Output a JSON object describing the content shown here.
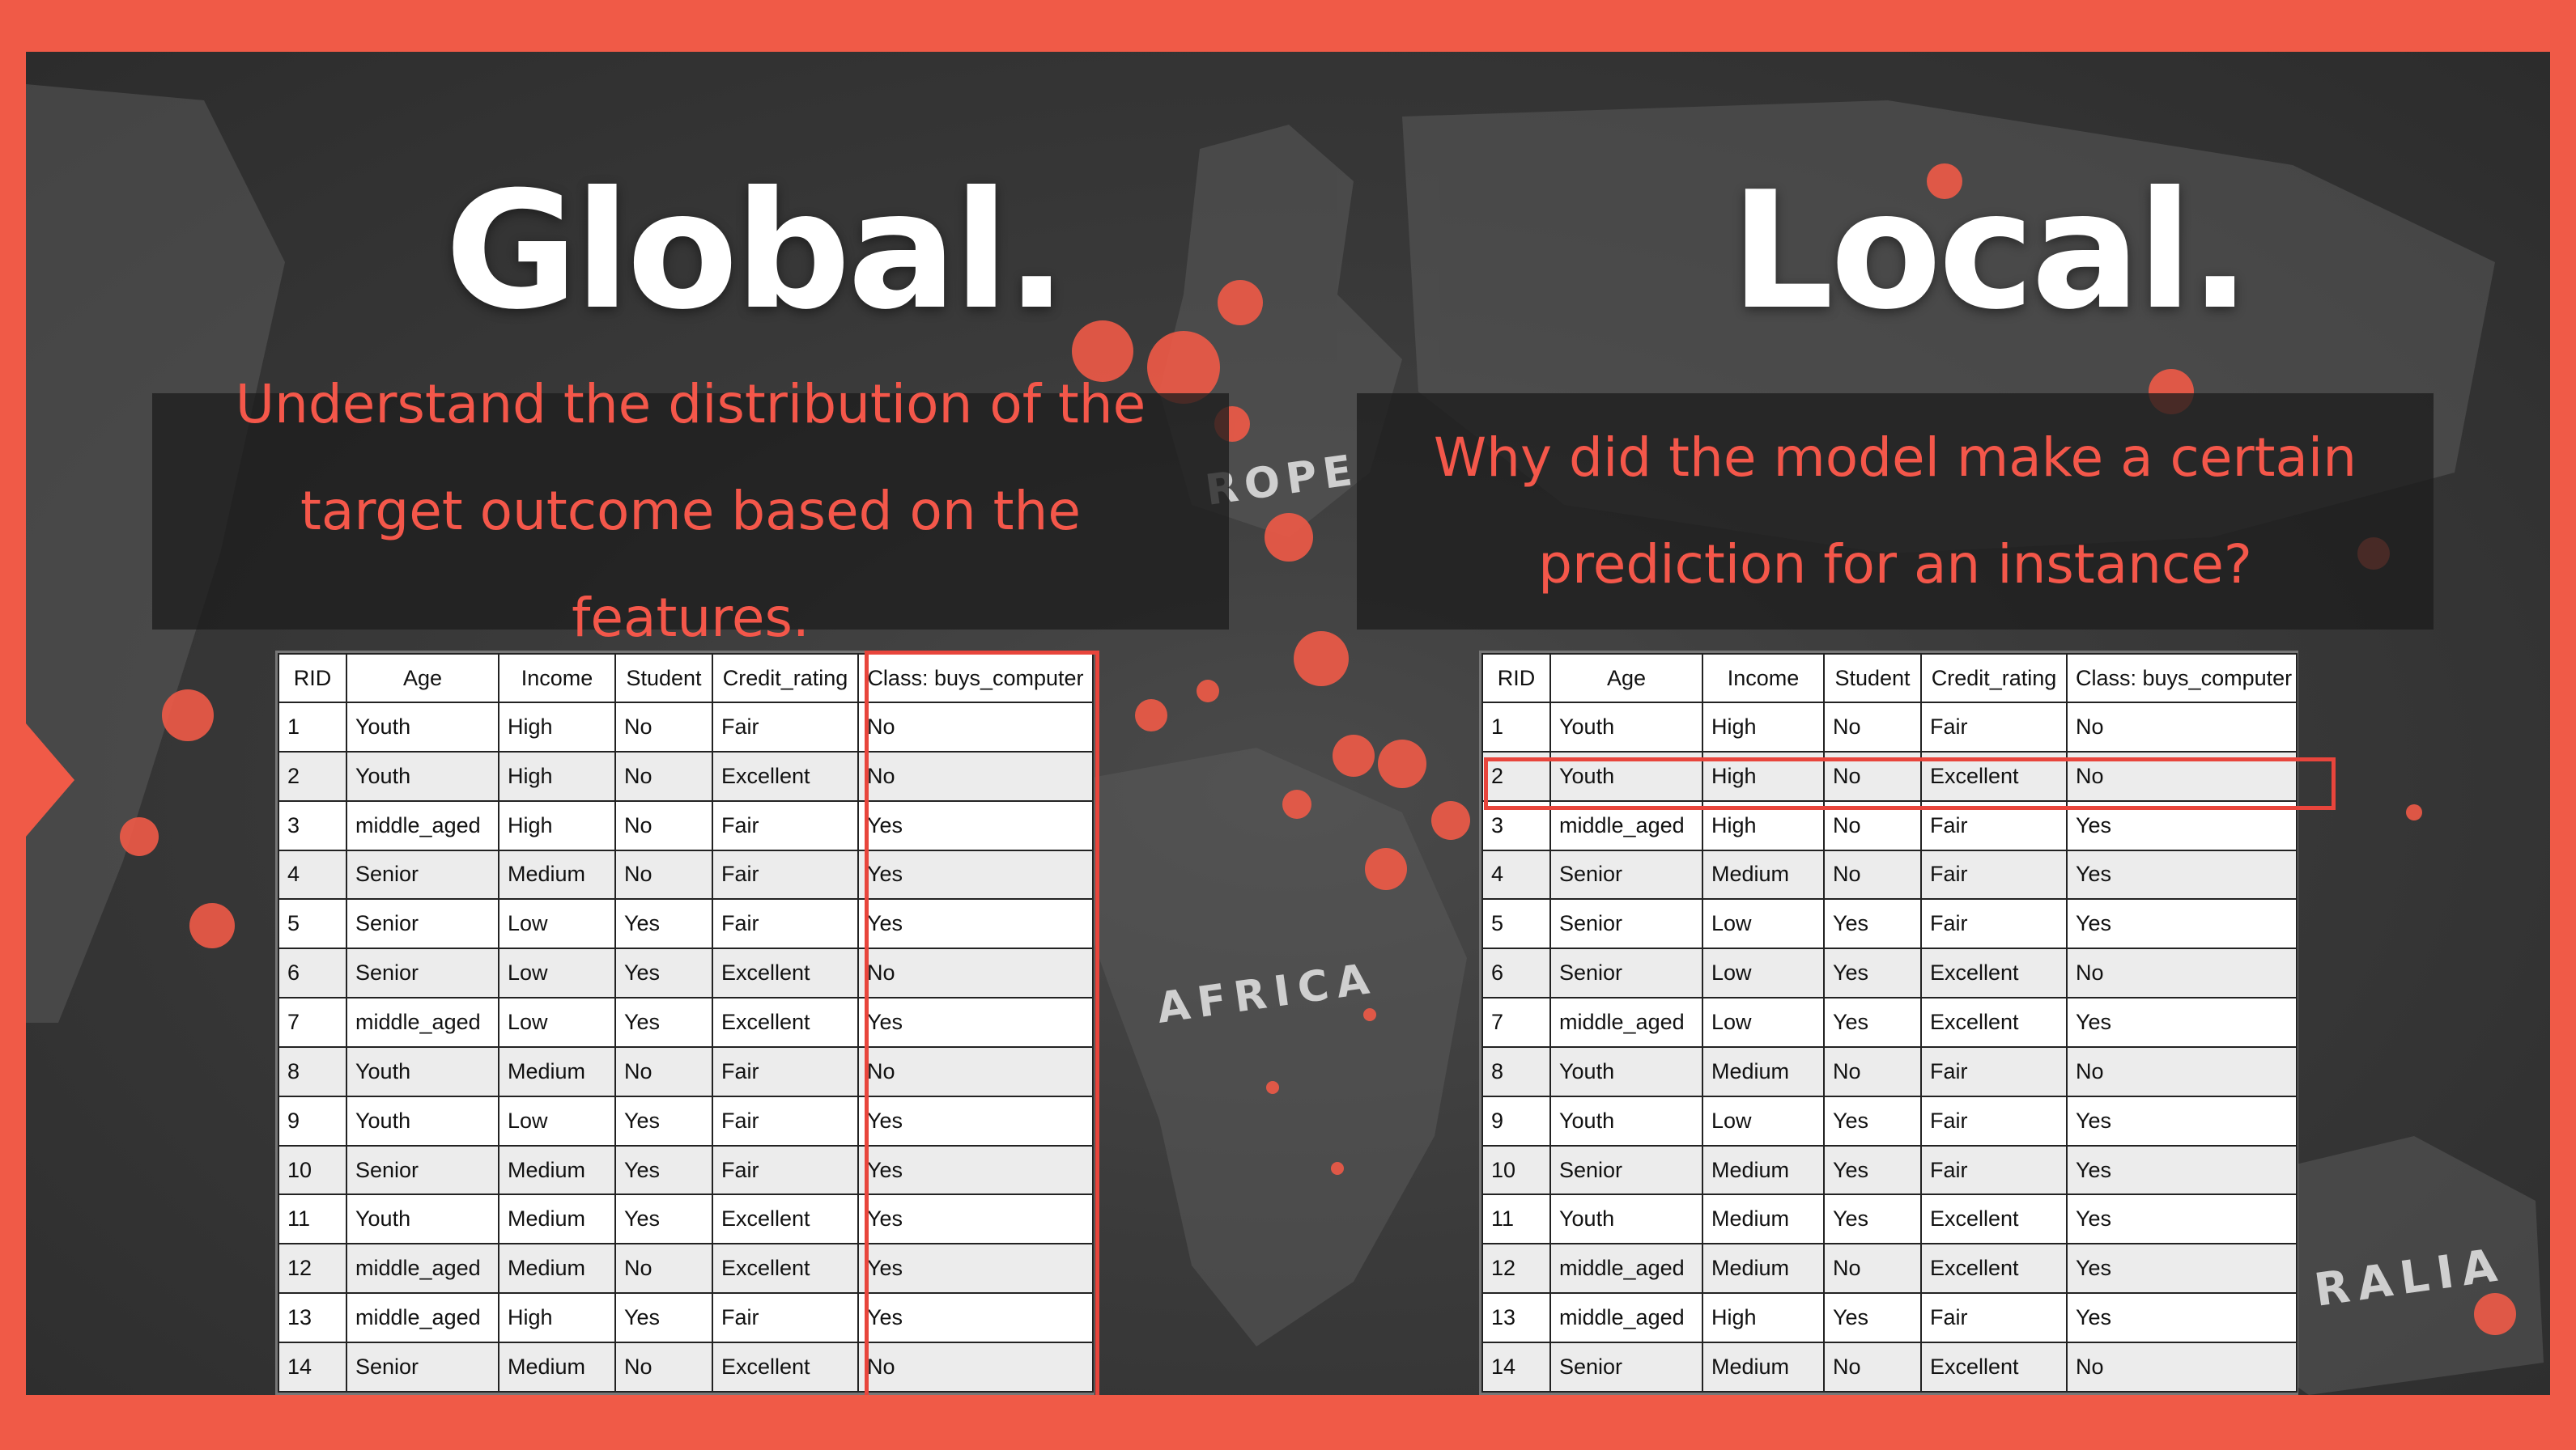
{
  "global": {
    "title": "Global.",
    "subtitle_lines": [
      "Understand the distribution of the",
      "target outcome based on the features."
    ]
  },
  "local": {
    "title": "Local.",
    "subtitle_lines": [
      "Why did the model make a certain",
      "prediction for an instance?"
    ]
  },
  "map_labels": {
    "europe": "ROPE",
    "africa": "AFRICA",
    "australia": "RALIA"
  },
  "table": {
    "columns": [
      "RID",
      "Age",
      "Income",
      "Student",
      "Credit_rating",
      "Class: buys_computer"
    ],
    "rows": [
      [
        "1",
        "Youth",
        "High",
        "No",
        "Fair",
        "No"
      ],
      [
        "2",
        "Youth",
        "High",
        "No",
        "Excellent",
        "No"
      ],
      [
        "3",
        "middle_aged",
        "High",
        "No",
        "Fair",
        "Yes"
      ],
      [
        "4",
        "Senior",
        "Medium",
        "No",
        "Fair",
        "Yes"
      ],
      [
        "5",
        "Senior",
        "Low",
        "Yes",
        "Fair",
        "Yes"
      ],
      [
        "6",
        "Senior",
        "Low",
        "Yes",
        "Excellent",
        "No"
      ],
      [
        "7",
        "middle_aged",
        "Low",
        "Yes",
        "Excellent",
        "Yes"
      ],
      [
        "8",
        "Youth",
        "Medium",
        "No",
        "Fair",
        "No"
      ],
      [
        "9",
        "Youth",
        "Low",
        "Yes",
        "Fair",
        "Yes"
      ],
      [
        "10",
        "Senior",
        "Medium",
        "Yes",
        "Fair",
        "Yes"
      ],
      [
        "11",
        "Youth",
        "Medium",
        "Yes",
        "Excellent",
        "Yes"
      ],
      [
        "12",
        "middle_aged",
        "Medium",
        "No",
        "Excellent",
        "Yes"
      ],
      [
        "13",
        "middle_aged",
        "High",
        "Yes",
        "Fair",
        "Yes"
      ],
      [
        "14",
        "Senior",
        "Medium",
        "No",
        "Excellent",
        "No"
      ]
    ]
  },
  "colors": {
    "frame": "#f05a47",
    "accent_text": "#f4574a",
    "highlight": "#e8453c",
    "title": "#ffffff"
  },
  "highlights": {
    "global_column": "Class: buys_computer",
    "local_row": "2"
  }
}
